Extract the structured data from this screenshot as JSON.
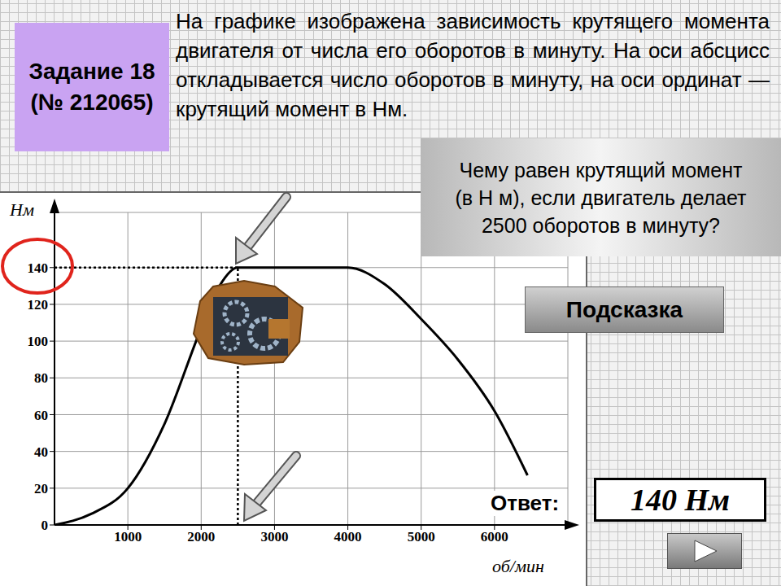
{
  "header": {
    "task": "Задание 18",
    "number": "(№ 212065)"
  },
  "description": "На графике изображена зависимость крутящего момента двигателя от числа его оборотов в минуту. На оси абсцисс откладывается число оборотов в минуту, на оси ординат — крутящий момент в Нм.",
  "question": "Чему равен крутящий момент (в Н м), если двигатель делает 2500 оборотов в минуту?",
  "hint_button": "Подсказка",
  "answer_label": "Ответ:",
  "answer": "140 Нм",
  "chart_data": {
    "type": "line",
    "x": [
      0,
      500,
      1000,
      1500,
      2000,
      2250,
      2500,
      3000,
      3500,
      4000,
      4500,
      5000,
      5500,
      6000,
      6450
    ],
    "values": [
      0,
      6,
      20,
      55,
      107,
      130,
      140,
      140,
      140,
      140,
      131,
      112,
      90,
      62,
      27
    ],
    "color": "#000000",
    "xlim": [
      0,
      7000
    ],
    "ylim": [
      0,
      170
    ],
    "xticks": [
      1000,
      2000,
      3000,
      4000,
      5000,
      6000
    ],
    "yticks": [
      0,
      20,
      40,
      60,
      80,
      100,
      120,
      140
    ],
    "x_label": "об/мин",
    "y_label": "Нм",
    "grid": true,
    "marked_point": {
      "x": 2500,
      "y": 140
    }
  }
}
